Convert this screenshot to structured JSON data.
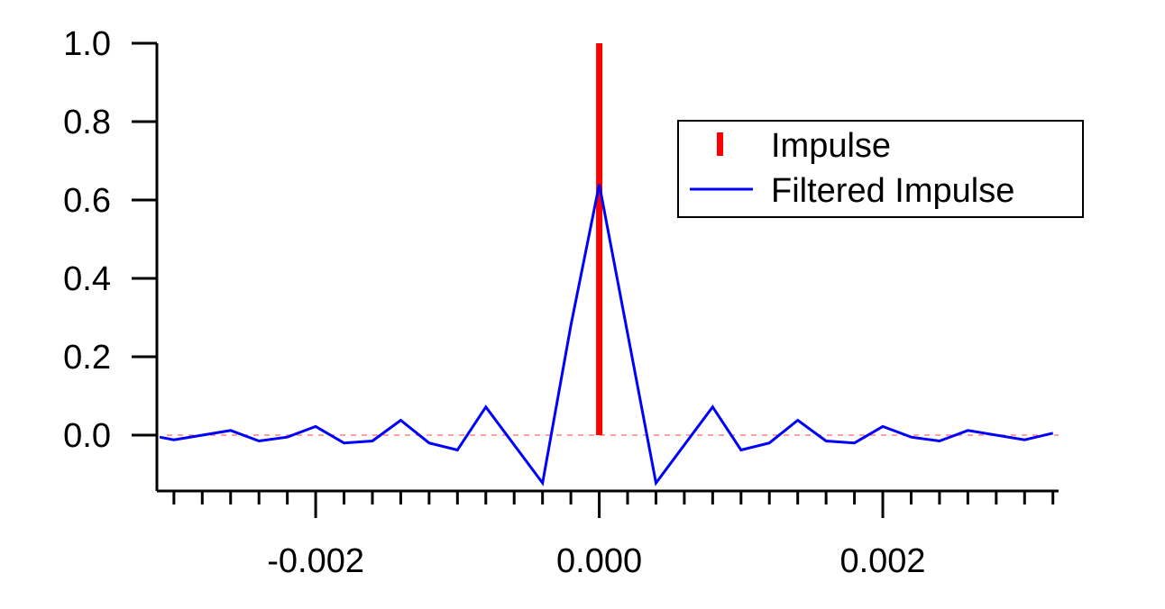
{
  "chart_data": {
    "type": "line",
    "title": "",
    "xlabel": "",
    "ylabel": "",
    "xlim": [
      -0.00305,
      0.00324
    ],
    "ylim": [
      -0.145,
      1.0
    ],
    "grid": false,
    "legend_position": "top-right",
    "y_ticks": [
      {
        "value": 0.0,
        "label": "0.0"
      },
      {
        "value": 0.2,
        "label": "0.2"
      },
      {
        "value": 0.4,
        "label": "0.4"
      },
      {
        "value": 0.6,
        "label": "0.6"
      },
      {
        "value": 0.8,
        "label": "0.8"
      },
      {
        "value": 1.0,
        "label": "1.0"
      }
    ],
    "x_ticks": [
      {
        "value": -0.002,
        "label": "-0.002"
      },
      {
        "value": 0.0,
        "label": "0.000"
      },
      {
        "value": 0.002,
        "label": "0.002"
      }
    ],
    "x_minor_step": 0.0002,
    "series": [
      {
        "name": "Impulse",
        "style": "stick",
        "color": "#ff0000",
        "x": [
          0.0
        ],
        "y": [
          1.0
        ]
      },
      {
        "name": "Filtered Impulse",
        "style": "line",
        "color": "#0000ff",
        "x": [
          -0.0031,
          -0.003,
          -0.0026,
          -0.0024,
          -0.0022,
          -0.002,
          -0.0018,
          -0.0016,
          -0.0014,
          -0.0012,
          -0.001,
          -0.0008,
          -0.0004,
          -0.0002,
          0.0,
          0.0004,
          0.0008,
          0.001,
          0.0012,
          0.0014,
          0.0016,
          0.0018,
          0.002,
          0.0022,
          0.0024,
          0.0026,
          0.003,
          0.0032
        ],
        "y": [
          -0.005,
          -0.012,
          0.012,
          -0.015,
          -0.005,
          0.022,
          -0.02,
          -0.015,
          0.038,
          -0.02,
          -0.038,
          0.072,
          -0.122,
          0.28,
          0.64,
          -0.122,
          0.072,
          -0.038,
          -0.02,
          0.038,
          -0.015,
          -0.02,
          0.022,
          -0.005,
          -0.015,
          0.012,
          -0.012,
          0.005
        ]
      }
    ],
    "zero_line": {
      "color": "#ff8080",
      "style": "dashed"
    }
  }
}
